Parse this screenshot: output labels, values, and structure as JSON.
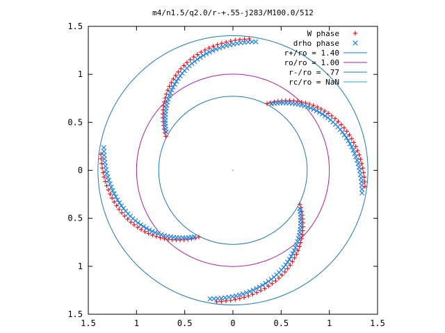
{
  "chart_data": {
    "type": "scatter",
    "title": "m4/n1.5/q2.0/r-+.55-j283/M100.0/512",
    "xlim": [
      -1.5,
      1.5
    ],
    "ylim": [
      -1.5,
      1.5
    ],
    "x_ticks": [
      {
        "value": -1.5,
        "label": "1.5"
      },
      {
        "value": -1,
        "label": "1"
      },
      {
        "value": -0.5,
        "label": "0.5"
      },
      {
        "value": 0,
        "label": "0"
      },
      {
        "value": 0.5,
        "label": "0.5"
      },
      {
        "value": 1,
        "label": "1"
      },
      {
        "value": 1.5,
        "label": "1.5"
      }
    ],
    "y_ticks": [
      {
        "value": 1.5,
        "label": "1.5"
      },
      {
        "value": 1,
        "label": "1"
      },
      {
        "value": 0.5,
        "label": "0.5"
      },
      {
        "value": 0,
        "label": "0"
      },
      {
        "value": -0.5,
        "label": "0.5"
      },
      {
        "value": -1,
        "label": "1"
      },
      {
        "value": -1.5,
        "label": "1.5"
      }
    ],
    "grid": false,
    "legend_position": "top-right",
    "circles": [
      {
        "name": "r+/ro = 1.40",
        "radius": 1.4,
        "color": "#1f77b4"
      },
      {
        "name": "ro/ro = 1.00",
        "radius": 1.0,
        "color": "#a020a0"
      },
      {
        "name": "r-/ro =  .77",
        "radius": 0.77,
        "color": "#1f77b4"
      },
      {
        "name": "rc/ro = NaN",
        "radius": null,
        "color": "#20b0c0"
      }
    ],
    "series": [
      {
        "name": "W phase",
        "marker": "plus",
        "color": "#e8101a",
        "arcs": [
          {
            "r_start": 1.38,
            "r_end": 0.78,
            "theta_start": 83,
            "theta_end": 153,
            "n": 36,
            "bulge": 0.1
          },
          {
            "r_start": 1.38,
            "r_end": 0.78,
            "theta_start": 173,
            "theta_end": 243,
            "n": 36,
            "bulge": 0.1
          },
          {
            "r_start": 1.38,
            "r_end": 0.78,
            "theta_start": 263,
            "theta_end": 333,
            "n": 36,
            "bulge": 0.1
          },
          {
            "r_start": 1.38,
            "r_end": 0.78,
            "theta_start": 353,
            "theta_end": 423,
            "n": 36,
            "bulge": 0.1
          }
        ]
      },
      {
        "name": "drho phase",
        "marker": "cross",
        "color": "#2080e0",
        "arcs": [
          {
            "r_start": 1.36,
            "r_end": 0.8,
            "theta_start": 80,
            "theta_end": 150,
            "n": 44,
            "bulge": 0.08
          },
          {
            "r_start": 1.36,
            "r_end": 0.8,
            "theta_start": 170,
            "theta_end": 240,
            "n": 44,
            "bulge": 0.08
          },
          {
            "r_start": 1.36,
            "r_end": 0.8,
            "theta_start": 260,
            "theta_end": 330,
            "n": 44,
            "bulge": 0.08
          },
          {
            "r_start": 1.36,
            "r_end": 0.8,
            "theta_start": 350,
            "theta_end": 420,
            "n": 44,
            "bulge": 0.08
          }
        ]
      }
    ]
  }
}
